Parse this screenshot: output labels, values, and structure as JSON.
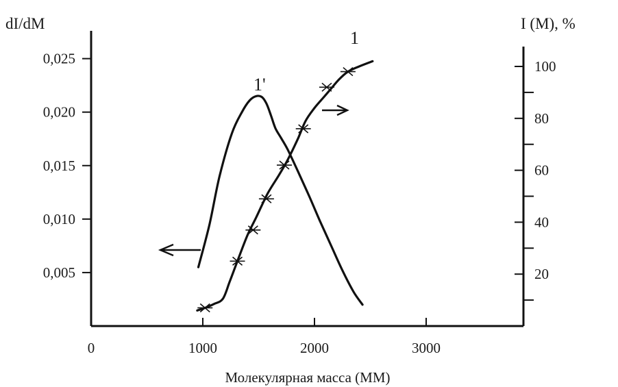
{
  "chart_data": {
    "type": "line",
    "xlabel": "Молекулярная масса (ММ)",
    "xlim": [
      0,
      3900
    ],
    "x_ticks": [
      0,
      1000,
      2000,
      3000
    ],
    "x_tick_labels": [
      "0",
      "1000",
      "2000",
      "3000"
    ],
    "y_left": {
      "label": "dI/dM",
      "lim": [
        0,
        0.0276
      ],
      "ticks": [
        0.005,
        0.01,
        0.015,
        0.02,
        0.025
      ],
      "tick_labels": [
        "0,005",
        "0,010",
        "0,015",
        "0,020",
        "0,025"
      ]
    },
    "y_right": {
      "label": "I (M), %",
      "lim": [
        0,
        108
      ],
      "ticks": [
        20,
        40,
        60,
        80,
        100
      ],
      "tick_labels": [
        "20",
        "40",
        "60",
        "80",
        "100"
      ],
      "minor_ticks": [
        10,
        30,
        50,
        70,
        90
      ]
    },
    "series": [
      {
        "name": "1'",
        "axis": "left",
        "x": [
          960,
          1060,
          1150,
          1260,
          1350,
          1420,
          1480,
          1530,
          1570,
          1610,
          1650,
          1700,
          1760,
          1850,
          1950,
          2050,
          2150,
          2250,
          2350,
          2430
        ],
        "y": [
          0.0055,
          0.0095,
          0.014,
          0.018,
          0.02,
          0.0211,
          0.0215,
          0.0214,
          0.0208,
          0.0197,
          0.0185,
          0.0176,
          0.0165,
          0.0145,
          0.0122,
          0.0098,
          0.0075,
          0.0052,
          0.0032,
          0.002
        ]
      },
      {
        "name": "1",
        "axis": "right",
        "x": [
          950,
          1020,
          1100,
          1180,
          1240,
          1310,
          1400,
          1480,
          1580,
          1680,
          1760,
          1850,
          1920,
          2000,
          2080,
          2140,
          2220,
          2300,
          2400,
          2520
        ],
        "y": [
          6,
          7,
          8.5,
          10.5,
          17,
          25,
          35,
          42,
          51,
          58,
          64,
          72,
          79,
          84,
          88,
          91,
          95,
          98,
          100,
          102
        ],
        "markers": {
          "x": [
            1020,
            1310,
            1450,
            1570,
            1730,
            1900,
            2110,
            2300
          ],
          "y": [
            7,
            25,
            37,
            49,
            62,
            76,
            92,
            98
          ]
        }
      }
    ],
    "annotations": [
      "1'",
      "1"
    ]
  }
}
